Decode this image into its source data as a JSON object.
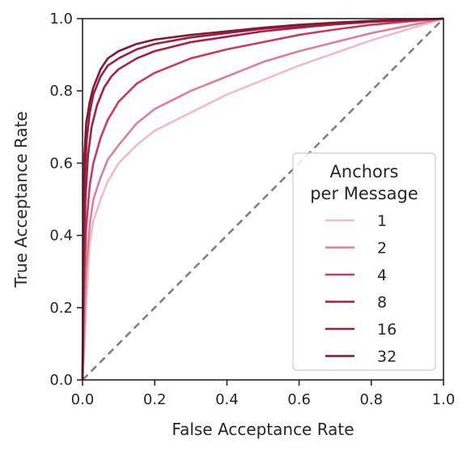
{
  "chart_data": {
    "type": "line",
    "title": "",
    "xlabel": "False Acceptance Rate",
    "ylabel": "True Acceptance Rate",
    "xlim": [
      0,
      1
    ],
    "ylim": [
      0,
      1
    ],
    "xticks": [
      "0.0",
      "0.2",
      "0.4",
      "0.6",
      "0.8",
      "1.0"
    ],
    "yticks": [
      "0.0",
      "0.2",
      "0.4",
      "0.6",
      "0.8",
      "1.0"
    ],
    "grid": false,
    "legend": {
      "title_line1": "Anchors",
      "title_line2": "per Message",
      "placement": "lower-right"
    },
    "reference_line": {
      "style": "dashed",
      "color": "#808080",
      "points": [
        [
          0,
          0
        ],
        [
          1,
          1
        ]
      ]
    },
    "series": [
      {
        "name": "1",
        "color": "#eebbc8",
        "points": [
          [
            0,
            0
          ],
          [
            0.005,
            0.08
          ],
          [
            0.01,
            0.2
          ],
          [
            0.015,
            0.3
          ],
          [
            0.02,
            0.38
          ],
          [
            0.03,
            0.44
          ],
          [
            0.05,
            0.5
          ],
          [
            0.07,
            0.55
          ],
          [
            0.1,
            0.6
          ],
          [
            0.15,
            0.65
          ],
          [
            0.2,
            0.69
          ],
          [
            0.3,
            0.74
          ],
          [
            0.4,
            0.79
          ],
          [
            0.5,
            0.83
          ],
          [
            0.6,
            0.87
          ],
          [
            0.7,
            0.905
          ],
          [
            0.8,
            0.94
          ],
          [
            0.9,
            0.97
          ],
          [
            1,
            1
          ]
        ]
      },
      {
        "name": "2",
        "color": "#de7f95",
        "points": [
          [
            0,
            0
          ],
          [
            0.005,
            0.16
          ],
          [
            0.01,
            0.3
          ],
          [
            0.02,
            0.43
          ],
          [
            0.03,
            0.5
          ],
          [
            0.05,
            0.56
          ],
          [
            0.07,
            0.61
          ],
          [
            0.1,
            0.65
          ],
          [
            0.15,
            0.71
          ],
          [
            0.2,
            0.75
          ],
          [
            0.3,
            0.8
          ],
          [
            0.4,
            0.84
          ],
          [
            0.5,
            0.88
          ],
          [
            0.6,
            0.91
          ],
          [
            0.7,
            0.935
          ],
          [
            0.8,
            0.96
          ],
          [
            0.9,
            0.98
          ],
          [
            1,
            1
          ]
        ]
      },
      {
        "name": "4",
        "color": "#c83c5e",
        "points": [
          [
            0,
            0
          ],
          [
            0.004,
            0.25
          ],
          [
            0.01,
            0.42
          ],
          [
            0.02,
            0.54
          ],
          [
            0.03,
            0.6
          ],
          [
            0.05,
            0.67
          ],
          [
            0.07,
            0.72
          ],
          [
            0.1,
            0.77
          ],
          [
            0.15,
            0.82
          ],
          [
            0.2,
            0.85
          ],
          [
            0.3,
            0.89
          ],
          [
            0.4,
            0.915
          ],
          [
            0.5,
            0.935
          ],
          [
            0.6,
            0.955
          ],
          [
            0.7,
            0.97
          ],
          [
            0.8,
            0.983
          ],
          [
            0.9,
            0.992
          ],
          [
            1,
            1
          ]
        ]
      },
      {
        "name": "8",
        "color": "#ad1c43",
        "points": [
          [
            0,
            0
          ],
          [
            0.003,
            0.3
          ],
          [
            0.008,
            0.5
          ],
          [
            0.015,
            0.62
          ],
          [
            0.025,
            0.7
          ],
          [
            0.04,
            0.76
          ],
          [
            0.06,
            0.81
          ],
          [
            0.08,
            0.84
          ],
          [
            0.1,
            0.86
          ],
          [
            0.15,
            0.89
          ],
          [
            0.2,
            0.91
          ],
          [
            0.3,
            0.935
          ],
          [
            0.4,
            0.95
          ],
          [
            0.5,
            0.965
          ],
          [
            0.6,
            0.975
          ],
          [
            0.7,
            0.984
          ],
          [
            0.8,
            0.991
          ],
          [
            0.9,
            0.996
          ],
          [
            1,
            1
          ]
        ]
      },
      {
        "name": "16",
        "color": "#9c1f3e",
        "points": [
          [
            0,
            0
          ],
          [
            0.003,
            0.4
          ],
          [
            0.007,
            0.58
          ],
          [
            0.012,
            0.67
          ],
          [
            0.02,
            0.74
          ],
          [
            0.03,
            0.79
          ],
          [
            0.05,
            0.84
          ],
          [
            0.07,
            0.87
          ],
          [
            0.1,
            0.89
          ],
          [
            0.15,
            0.915
          ],
          [
            0.2,
            0.93
          ],
          [
            0.3,
            0.948
          ],
          [
            0.4,
            0.96
          ],
          [
            0.5,
            0.972
          ],
          [
            0.6,
            0.98
          ],
          [
            0.7,
            0.987
          ],
          [
            0.8,
            0.993
          ],
          [
            0.9,
            0.997
          ],
          [
            1,
            1
          ]
        ]
      },
      {
        "name": "32",
        "color": "#7e1a32",
        "points": [
          [
            0,
            0
          ],
          [
            0.002,
            0.45
          ],
          [
            0.005,
            0.62
          ],
          [
            0.01,
            0.71
          ],
          [
            0.02,
            0.77
          ],
          [
            0.03,
            0.81
          ],
          [
            0.05,
            0.86
          ],
          [
            0.07,
            0.89
          ],
          [
            0.1,
            0.91
          ],
          [
            0.15,
            0.93
          ],
          [
            0.2,
            0.942
          ],
          [
            0.3,
            0.955
          ],
          [
            0.4,
            0.965
          ],
          [
            0.5,
            0.975
          ],
          [
            0.6,
            0.983
          ],
          [
            0.7,
            0.989
          ],
          [
            0.8,
            0.994
          ],
          [
            0.9,
            0.997
          ],
          [
            1,
            1
          ]
        ]
      }
    ]
  }
}
